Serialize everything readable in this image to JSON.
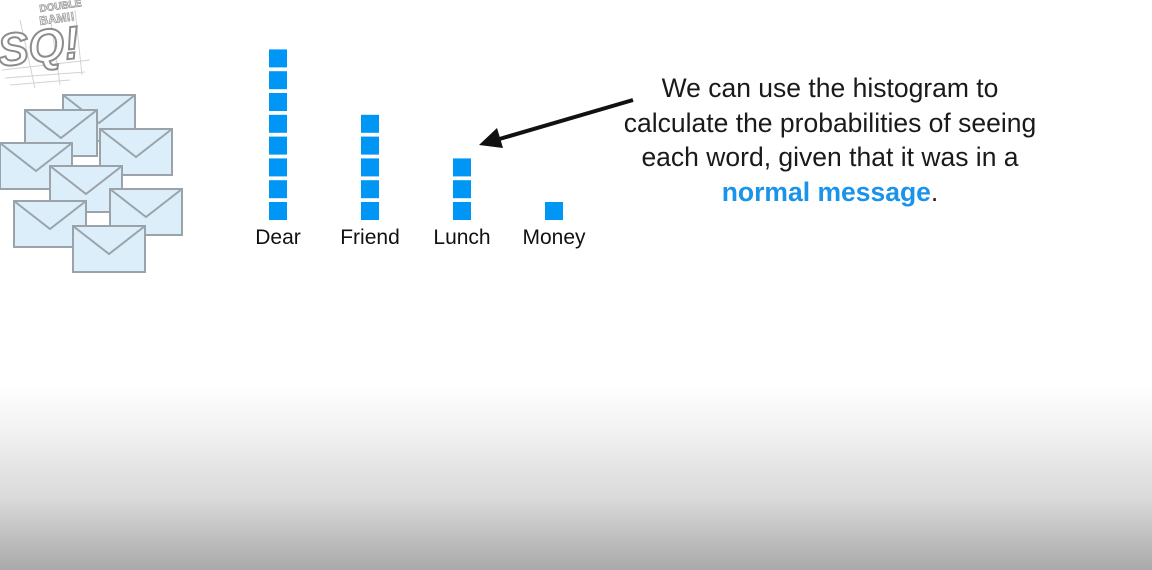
{
  "logo": {
    "top_text": "DOUBLE",
    "mid_text": "BAM!!",
    "main_text": "SQ!"
  },
  "note": {
    "text_before": "We can use the histogram to calculate the probabilities of seeing each word, given that it was in a ",
    "highlight": "normal message",
    "text_after": ".",
    "highlight_color": "#1a93ea"
  },
  "chart_data": {
    "type": "bar",
    "title": "",
    "xlabel": "",
    "ylabel": "",
    "categories": [
      "Dear",
      "Friend",
      "Lunch",
      "Money"
    ],
    "values": [
      8,
      5,
      3,
      1
    ],
    "ylim": [
      0,
      8
    ],
    "grid": false,
    "bar_style": "stacked unit squares",
    "color": "#0096f5"
  }
}
